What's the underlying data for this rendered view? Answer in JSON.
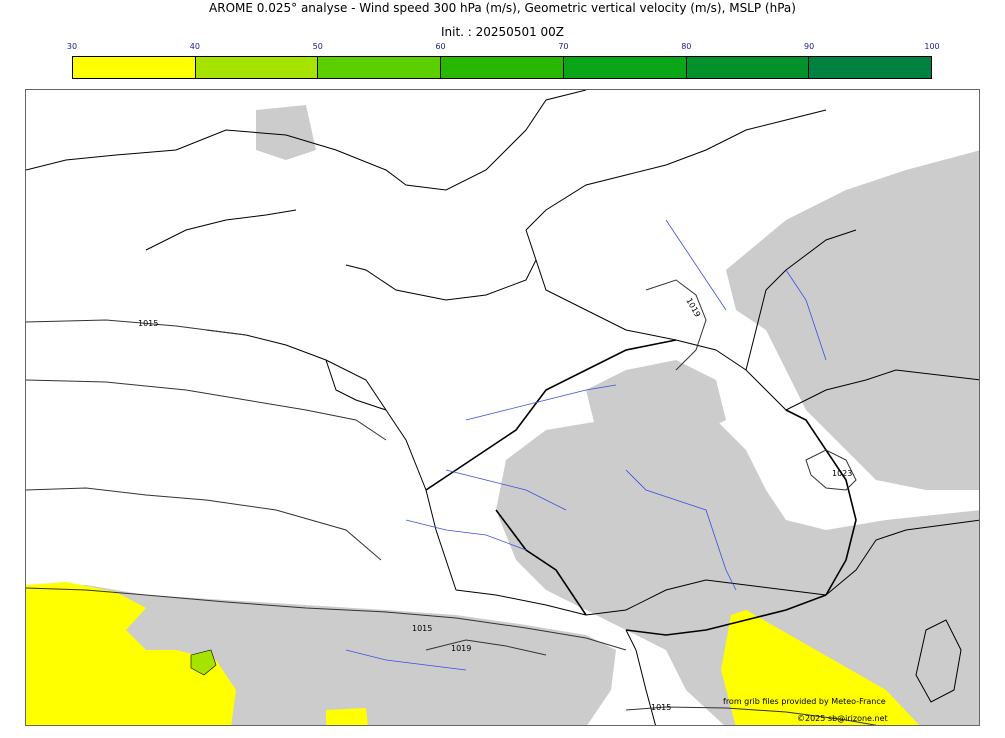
{
  "header": {
    "title": "AROME 0.025° analyse - Wind speed 300 hPa (m/s), Geometric vertical velocity (m/s), MSLP (hPa)",
    "init": "Init. : 20250501 00Z"
  },
  "colorbar": {
    "ticks": [
      "30",
      "40",
      "50",
      "60",
      "70",
      "80",
      "90",
      "100"
    ],
    "colors": [
      "#ffff00",
      "#a6e300",
      "#5ccf00",
      "#29b800",
      "#0aa618",
      "#03912c",
      "#028240",
      "#057a4c"
    ]
  },
  "map": {
    "isobar_labels": [
      "1015",
      "1019",
      "1023",
      "1015",
      "1019",
      "1015"
    ],
    "colors": {
      "isobar": "#333333",
      "coast": "#000000",
      "river": "#3a4fe0",
      "terrain": "#c8c8c8",
      "wind": "#ffff00",
      "wind2": "#a6e300"
    }
  },
  "credits": {
    "source": "from grib files provided by Meteo-France",
    "copyright": "©2025 sb@irizone.net"
  }
}
